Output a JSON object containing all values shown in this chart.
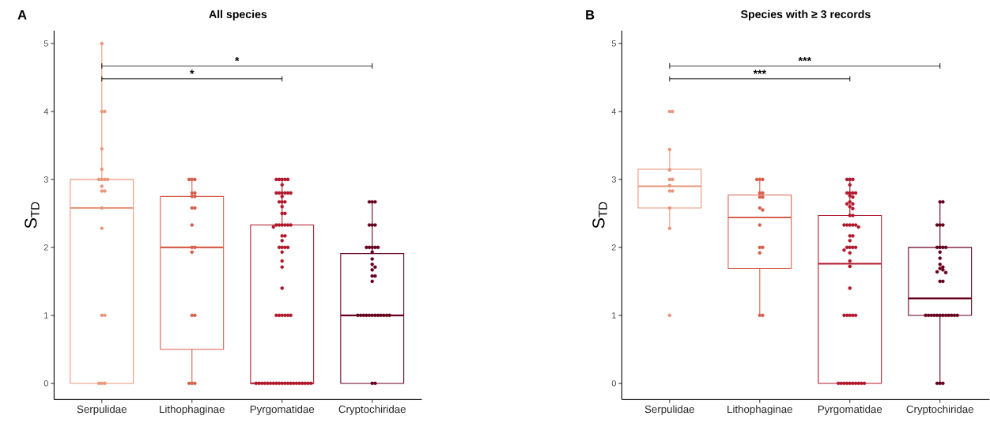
{
  "chart_data": [
    {
      "type": "box",
      "title": "All species",
      "ylabel": "S$_{TD}$",
      "categories": [
        "Serpulidae",
        "Lithophaginae",
        "Pyrgomatidae",
        "Cryptochiridae"
      ],
      "colors": [
        "#e9967a",
        "#d6604d",
        "#b2182b",
        "#67001f"
      ],
      "boxes": [
        {
          "low": 0,
          "q1": 0,
          "median": 2.58,
          "q3": 3.0,
          "high": 5.0
        },
        {
          "low": 0,
          "q1": 0.5,
          "median": 2.0,
          "q3": 2.75,
          "high": 3.0
        },
        {
          "low": 0,
          "q1": 0,
          "median": 0,
          "q3": 2.33,
          "high": 3.0
        },
        {
          "low": 0,
          "q1": 0,
          "median": 1.0,
          "q3": 1.91,
          "high": 2.67
        }
      ],
      "ylim": [
        -0.24,
        5.19
      ],
      "yticks": [
        0,
        1,
        2,
        3,
        4,
        5
      ],
      "annotations": [
        "A",
        "*",
        "*"
      ],
      "series": [
        {
          "type": "scatter",
          "color": "#e9967a",
          "x": [
            "Serpulidae",
            "Serpulidae",
            "Serpulidae",
            "Serpulidae",
            "Serpulidae",
            "Serpulidae",
            "Serpulidae",
            "Serpulidae",
            "Serpulidae",
            "Serpulidae",
            "Serpulidae",
            "Serpulidae",
            "Serpulidae",
            "Serpulidae",
            "Serpulidae",
            "Serpulidae",
            "Serpulidae",
            "Serpulidae",
            "Serpulidae"
          ],
          "values": [
            5,
            4,
            4,
            3.45,
            3.15,
            3,
            3,
            3,
            3,
            2.9,
            2.83,
            2.83,
            2.58,
            2.28,
            1,
            1,
            0,
            0,
            0
          ]
        },
        {
          "type": "scatter",
          "color": "#d6604d",
          "x": [
            "Lithophaginae",
            "Lithophaginae",
            "Lithophaginae",
            "Lithophaginae",
            "Lithophaginae",
            "Lithophaginae",
            "Lithophaginae",
            "Lithophaginae",
            "Lithophaginae",
            "Lithophaginae",
            "Lithophaginae",
            "Lithophaginae",
            "Lithophaginae",
            "Lithophaginae",
            "Lithophaginae",
            "Lithophaginae",
            "Lithophaginae",
            "Lithophaginae"
          ],
          "values": [
            3,
            3,
            3,
            2.8,
            2.8,
            2.75,
            2.75,
            2.58,
            2.58,
            2.33,
            2,
            2,
            1.93,
            1,
            1,
            0,
            0,
            0
          ]
        },
        {
          "type": "scatter",
          "color": "#b2182b",
          "x": [
            "Pyrgomatidae",
            "Pyrgomatidae",
            "Pyrgomatidae",
            "Pyrgomatidae",
            "Pyrgomatidae",
            "Pyrgomatidae",
            "Pyrgomatidae",
            "Pyrgomatidae",
            "Pyrgomatidae",
            "Pyrgomatidae",
            "Pyrgomatidae",
            "Pyrgomatidae",
            "Pyrgomatidae",
            "Pyrgomatidae",
            "Pyrgomatidae",
            "Pyrgomatidae",
            "Pyrgomatidae",
            "Pyrgomatidae",
            "Pyrgomatidae",
            "Pyrgomatidae",
            "Pyrgomatidae",
            "Pyrgomatidae",
            "Pyrgomatidae",
            "Pyrgomatidae",
            "Pyrgomatidae",
            "Pyrgomatidae",
            "Pyrgomatidae",
            "Pyrgomatidae",
            "Pyrgomatidae",
            "Pyrgomatidae",
            "Pyrgomatidae",
            "Pyrgomatidae",
            "Pyrgomatidae",
            "Pyrgomatidae",
            "Pyrgomatidae",
            "Pyrgomatidae",
            "Pyrgomatidae",
            "Pyrgomatidae",
            "Pyrgomatidae",
            "Pyrgomatidae",
            "Pyrgomatidae",
            "Pyrgomatidae",
            "Pyrgomatidae",
            "Pyrgomatidae",
            "Pyrgomatidae",
            "Pyrgomatidae",
            "Pyrgomatidae",
            "Pyrgomatidae",
            "Pyrgomatidae",
            "Pyrgomatidae",
            "Pyrgomatidae",
            "Pyrgomatidae",
            "Pyrgomatidae",
            "Pyrgomatidae",
            "Pyrgomatidae",
            "Pyrgomatidae",
            "Pyrgomatidae",
            "Pyrgomatidae",
            "Pyrgomatidae",
            "Pyrgomatidae",
            "Pyrgomatidae",
            "Pyrgomatidae",
            "Pyrgomatidae"
          ],
          "values": [
            3,
            3,
            3,
            3,
            3,
            2.92,
            2.8,
            2.8,
            2.8,
            2.8,
            2.8,
            2.8,
            2.75,
            2.67,
            2.67,
            2.67,
            2.6,
            2.5,
            2.5,
            2.33,
            2.33,
            2.33,
            2.33,
            2.33,
            2.33,
            2.3,
            2.17,
            2.17,
            2.1,
            2,
            2,
            2,
            2,
            1.93,
            1.8,
            1.71,
            1.4,
            1,
            1,
            1,
            1,
            1,
            1,
            0,
            0,
            0,
            0,
            0,
            0,
            0,
            0,
            0,
            0,
            0,
            0,
            0,
            0,
            0,
            0,
            0,
            0,
            0,
            0
          ]
        },
        {
          "type": "scatter",
          "color": "#67001f",
          "x": [
            "Cryptochiridae",
            "Cryptochiridae",
            "Cryptochiridae",
            "Cryptochiridae",
            "Cryptochiridae",
            "Cryptochiridae",
            "Cryptochiridae",
            "Cryptochiridae",
            "Cryptochiridae",
            "Cryptochiridae",
            "Cryptochiridae",
            "Cryptochiridae",
            "Cryptochiridae",
            "Cryptochiridae",
            "Cryptochiridae",
            "Cryptochiridae",
            "Cryptochiridae",
            "Cryptochiridae",
            "Cryptochiridae",
            "Cryptochiridae",
            "Cryptochiridae",
            "Cryptochiridae",
            "Cryptochiridae",
            "Cryptochiridae",
            "Cryptochiridae",
            "Cryptochiridae",
            "Cryptochiridae",
            "Cryptochiridae",
            "Cryptochiridae",
            "Cryptochiridae",
            "Cryptochiridae",
            "Cryptochiridae",
            "Cryptochiridae"
          ],
          "values": [
            2.67,
            2.67,
            2.67,
            2.33,
            2.33,
            2.33,
            2,
            2,
            2,
            2,
            2,
            1.93,
            1.83,
            1.75,
            1.71,
            1.67,
            1.58,
            1.58,
            1.5,
            1,
            1,
            1,
            1,
            1,
            1,
            1,
            1,
            1,
            1,
            1,
            1,
            0,
            0
          ]
        }
      ]
    },
    {
      "type": "box",
      "title": "Species with ≥ 3 records",
      "ylabel": "S$_{TD}$",
      "categories": [
        "Serpulidae",
        "Lithophaginae",
        "Pyrgomatidae",
        "Cryptochiridae"
      ],
      "colors": [
        "#e9967a",
        "#d6604d",
        "#b2182b",
        "#67001f"
      ],
      "boxes": [
        {
          "low": 2.29,
          "q1": 2.58,
          "median": 2.9,
          "q3": 3.15,
          "high": 3.44
        },
        {
          "low": 1.0,
          "q1": 1.69,
          "median": 2.44,
          "q3": 2.77,
          "high": 3.0
        },
        {
          "low": 0,
          "q1": 0,
          "median": 1.76,
          "q3": 2.47,
          "high": 3.0
        },
        {
          "low": 0,
          "q1": 1.0,
          "median": 1.25,
          "q3": 2.0,
          "high": 2.67
        }
      ],
      "ylim": [
        -0.24,
        5.19
      ],
      "yticks": [
        0,
        1,
        2,
        3,
        4,
        5
      ],
      "annotations": [
        "B",
        "***",
        "***"
      ],
      "series": [
        {
          "type": "scatter",
          "color": "#e9967a",
          "x": [
            "Serpulidae",
            "Serpulidae",
            "Serpulidae",
            "Serpulidae",
            "Serpulidae",
            "Serpulidae",
            "Serpulidae",
            "Serpulidae",
            "Serpulidae",
            "Serpulidae",
            "Serpulidae",
            "Serpulidae"
          ],
          "values": [
            4,
            4,
            3.44,
            3.14,
            3,
            3,
            2.91,
            2.83,
            2.83,
            2.58,
            2.28,
            1
          ]
        },
        {
          "type": "scatter",
          "color": "#d6604d",
          "x": [
            "Lithophaginae",
            "Lithophaginae",
            "Lithophaginae",
            "Lithophaginae",
            "Lithophaginae",
            "Lithophaginae",
            "Lithophaginae",
            "Lithophaginae",
            "Lithophaginae",
            "Lithophaginae",
            "Lithophaginae",
            "Lithophaginae",
            "Lithophaginae",
            "Lithophaginae",
            "Lithophaginae"
          ],
          "values": [
            3,
            3,
            3,
            2.8,
            2.8,
            2.74,
            2.74,
            2.58,
            2.55,
            2.33,
            2,
            2,
            1.92,
            1,
            1
          ]
        },
        {
          "type": "scatter",
          "color": "#b2182b",
          "x": [
            "Pyrgomatidae",
            "Pyrgomatidae",
            "Pyrgomatidae",
            "Pyrgomatidae",
            "Pyrgomatidae",
            "Pyrgomatidae",
            "Pyrgomatidae",
            "Pyrgomatidae",
            "Pyrgomatidae",
            "Pyrgomatidae",
            "Pyrgomatidae",
            "Pyrgomatidae",
            "Pyrgomatidae",
            "Pyrgomatidae",
            "Pyrgomatidae",
            "Pyrgomatidae",
            "Pyrgomatidae",
            "Pyrgomatidae",
            "Pyrgomatidae",
            "Pyrgomatidae",
            "Pyrgomatidae",
            "Pyrgomatidae",
            "Pyrgomatidae",
            "Pyrgomatidae",
            "Pyrgomatidae",
            "Pyrgomatidae",
            "Pyrgomatidae",
            "Pyrgomatidae",
            "Pyrgomatidae",
            "Pyrgomatidae",
            "Pyrgomatidae",
            "Pyrgomatidae",
            "Pyrgomatidae",
            "Pyrgomatidae",
            "Pyrgomatidae",
            "Pyrgomatidae",
            "Pyrgomatidae",
            "Pyrgomatidae",
            "Pyrgomatidae",
            "Pyrgomatidae",
            "Pyrgomatidae",
            "Pyrgomatidae",
            "Pyrgomatidae",
            "Pyrgomatidae",
            "Pyrgomatidae",
            "Pyrgomatidae",
            "Pyrgomatidae",
            "Pyrgomatidae",
            "Pyrgomatidae",
            "Pyrgomatidae"
          ],
          "values": [
            3,
            3,
            3,
            2.92,
            2.8,
            2.8,
            2.8,
            2.8,
            2.76,
            2.74,
            2.67,
            2.64,
            2.64,
            2.6,
            2.57,
            2.47,
            2.47,
            2.33,
            2.33,
            2.33,
            2.33,
            2.33,
            2.3,
            2.17,
            2.17,
            2.1,
            2,
            2,
            2,
            2,
            1.96,
            1.92,
            1.8,
            1.72,
            1.4,
            1,
            1,
            1,
            1,
            1,
            0,
            0,
            0,
            0,
            0,
            0,
            0,
            0,
            0,
            0
          ]
        },
        {
          "type": "scatter",
          "color": "#67001f",
          "x": [
            "Cryptochiridae",
            "Cryptochiridae",
            "Cryptochiridae",
            "Cryptochiridae",
            "Cryptochiridae",
            "Cryptochiridae",
            "Cryptochiridae",
            "Cryptochiridae",
            "Cryptochiridae",
            "Cryptochiridae",
            "Cryptochiridae",
            "Cryptochiridae",
            "Cryptochiridae",
            "Cryptochiridae",
            "Cryptochiridae",
            "Cryptochiridae",
            "Cryptochiridae",
            "Cryptochiridae",
            "Cryptochiridae",
            "Cryptochiridae",
            "Cryptochiridae",
            "Cryptochiridae",
            "Cryptochiridae",
            "Cryptochiridae",
            "Cryptochiridae",
            "Cryptochiridae",
            "Cryptochiridae",
            "Cryptochiridae",
            "Cryptochiridae",
            "Cryptochiridae",
            "Cryptochiridae",
            "Cryptochiridae",
            "Cryptochiridae",
            "Cryptochiridae"
          ],
          "values": [
            2.67,
            2.67,
            2.33,
            2.33,
            2.33,
            2,
            2,
            2,
            2,
            1.93,
            1.84,
            1.75,
            1.71,
            1.69,
            1.67,
            1.64,
            1.63,
            1.5,
            1.5,
            1,
            1,
            1,
            1,
            1,
            1,
            1,
            1,
            1,
            1,
            1,
            1,
            0,
            0,
            0
          ]
        }
      ]
    }
  ]
}
